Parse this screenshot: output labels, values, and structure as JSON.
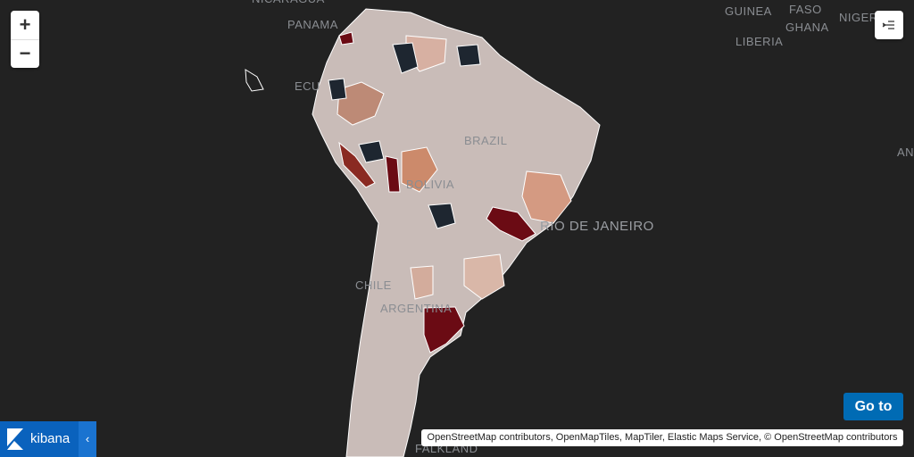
{
  "map": {
    "labels": [
      "NICARAGUA",
      "PANAMA",
      "GUINEA",
      "FASO",
      "NIGER",
      "LIBERIA",
      "GHANA",
      "ECU",
      "BRAZIL",
      "BOLIVIA",
      "RIO DE JANEIRO",
      "CHILE",
      "ARGENTINA",
      "FALKLAND",
      "ANG"
    ]
  },
  "controls": {
    "zoom_in": "+",
    "zoom_out": "−",
    "go_to": "Go to"
  },
  "attribution": "OpenStreetMap contributors, OpenMapTiles, MapTiler, Elastic Maps Service, © OpenStreetMap contributors",
  "brand": {
    "name": "kibana"
  }
}
